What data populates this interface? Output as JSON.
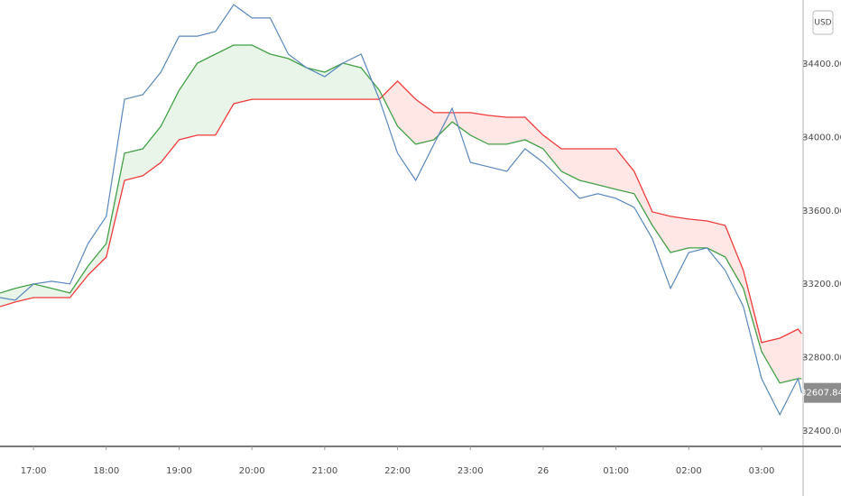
{
  "chart_data": {
    "type": "line",
    "y_axis_label": "USD",
    "x": [
      -0.46,
      -0.25,
      0,
      0.25,
      0.5,
      0.75,
      1,
      1.25,
      1.5,
      1.75,
      2,
      2.25,
      2.5,
      2.75,
      3,
      3.25,
      3.5,
      3.75,
      4,
      4.25,
      4.5,
      4.75,
      5,
      5.25,
      5.5,
      5.75,
      6,
      6.25,
      6.5,
      6.75,
      7,
      7.25,
      7.5,
      7.75,
      8,
      8.25,
      8.5,
      8.75,
      9,
      9.25,
      9.5,
      9.75,
      10,
      10.25,
      10.5,
      10.55
    ],
    "series": [
      {
        "color": "#5a88bd",
        "values": [
          33127,
          33113,
          33201,
          33216,
          33201,
          33422,
          33570,
          34208,
          34233,
          34356,
          34552,
          34552,
          34577,
          34724,
          34651,
          34651,
          34454,
          34380,
          34331,
          34405,
          34454,
          34208,
          33914,
          33766,
          33963,
          34159,
          33864,
          33840,
          33815,
          33938,
          33864,
          33766,
          33668,
          33693,
          33668,
          33619,
          33447,
          33177,
          33373,
          33398,
          33275,
          33078,
          32685,
          32489,
          32685,
          32607.84
        ]
      },
      {
        "color": "#43a047",
        "values": [
          33152,
          33177,
          33201,
          33177,
          33152,
          33299,
          33422,
          33914,
          33938,
          34061,
          34257,
          34405,
          34454,
          34503,
          34503,
          34454,
          34430,
          34380,
          34356,
          34405,
          34380,
          34257,
          34061,
          33963,
          33987,
          34085,
          34012,
          33963,
          33963,
          33987,
          33938,
          33815,
          33766,
          33742,
          33717,
          33693,
          33520,
          33373,
          33398,
          33398,
          33348,
          33177,
          32833,
          32661,
          32685,
          32685
        ]
      },
      {
        "color": "#ef3b3b",
        "values": [
          33078,
          33103,
          33127,
          33127,
          33127,
          33250,
          33348,
          33766,
          33791,
          33864,
          33987,
          34012,
          34012,
          34184,
          34208,
          34208,
          34208,
          34208,
          34208,
          34208,
          34208,
          34208,
          34307,
          34208,
          34135,
          34135,
          34135,
          34120,
          34110,
          34110,
          34012,
          33938,
          33938,
          33938,
          33938,
          33815,
          33594,
          33570,
          33555,
          33545,
          33520,
          33275,
          32882,
          32906,
          32955,
          32930
        ]
      }
    ],
    "band_colors": [
      "rgba(76,175,80,0.13)",
      "rgba(244,67,54,0.13)"
    ],
    "xlim": [
      -0.46,
      10.57
    ],
    "xticks": [
      {
        "value": 0,
        "label": "17:00"
      },
      {
        "value": 1,
        "label": "18:00"
      },
      {
        "value": 2,
        "label": "19:00"
      },
      {
        "value": 3,
        "label": "20:00"
      },
      {
        "value": 4,
        "label": "21:00"
      },
      {
        "value": 5,
        "label": "22:00"
      },
      {
        "value": 6,
        "label": "23:00"
      },
      7,
      {
        "value": 8,
        "label": "01:00"
      },
      {
        "value": 9,
        "label": "02:00"
      },
      {
        "value": 10,
        "label": "03:00"
      }
    ],
    "xtick_day": 7,
    "xtick_day_label": "26",
    "ylim": [
      32316,
      34749
    ],
    "yticks": [
      {
        "value": 32400,
        "label": "32400.00"
      },
      {
        "value": 32800,
        "label": "32800.00"
      },
      {
        "value": 33200,
        "label": "33200.00"
      },
      {
        "value": 33600,
        "label": "33600.00"
      },
      {
        "value": 34000,
        "label": "34000.00"
      },
      {
        "value": 34400,
        "label": "34400.00"
      }
    ],
    "grid": false
  }
}
